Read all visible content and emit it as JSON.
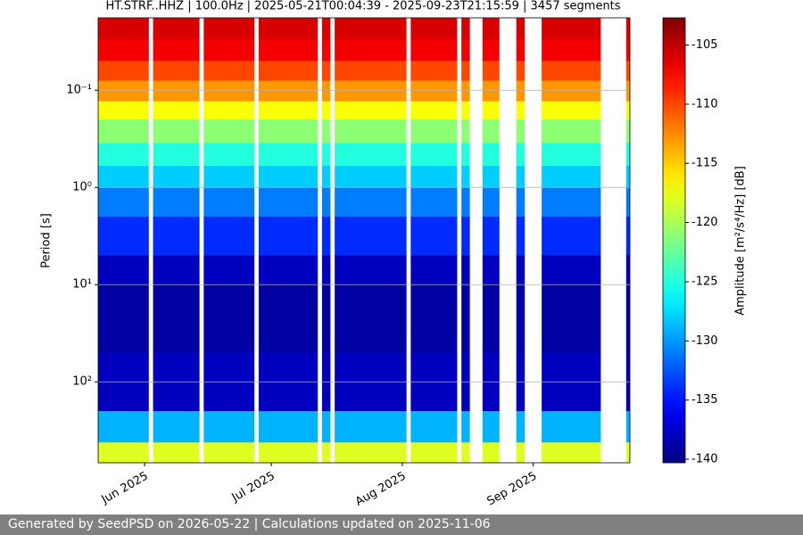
{
  "chart_data": {
    "type": "spectrogram",
    "title": "HT.STRF..HHZ | 100.0Hz | 2025-05-21T00:04:39 - 2025-09-23T21:15:59 | 3457 segments",
    "y_label": "Period [s]",
    "colorbar_label": "Amplitude [m²/s⁴/Hz] [dB]",
    "xlim": [
      "2025-05-21T00:04:39",
      "2025-09-23T21:15:59"
    ],
    "xticks": [
      {
        "value": "2025-06-01",
        "label": "Jun 2025"
      },
      {
        "value": "2025-07-01",
        "label": "Jul 2025"
      },
      {
        "value": "2025-08-01",
        "label": "Aug 2025"
      },
      {
        "value": "2025-09-01",
        "label": "Sep 2025"
      }
    ],
    "ylim": [
      0.018,
      680
    ],
    "y_log": true,
    "y_inverted": true,
    "yticks": [
      {
        "value": 0.1,
        "label": "10⁻¹"
      },
      {
        "value": 1,
        "label": "10⁰"
      },
      {
        "value": 10,
        "label": "10¹"
      },
      {
        "value": 100,
        "label": "10²"
      }
    ],
    "grid": true,
    "colormap": "jet",
    "clim": [
      -140.3,
      -102.7
    ],
    "cticks": [
      -105,
      -110,
      -115,
      -120,
      -125,
      -130,
      -135,
      -140
    ],
    "period_bins": [
      0.018,
      0.03,
      0.05,
      0.08,
      0.13,
      0.2,
      0.35,
      0.6,
      1,
      2,
      5,
      10,
      50,
      200,
      420,
      680
    ],
    "values": [
      -106,
      -107,
      -110,
      -113,
      -117,
      -121,
      -125,
      -128,
      -131,
      -134,
      -138,
      -139,
      -138,
      -129,
      -118
    ],
    "segments": [
      [
        "2025-05-21",
        "2025-06-02"
      ],
      [
        "2025-06-03",
        "2025-06-14"
      ],
      [
        "2025-06-15",
        "2025-06-27"
      ],
      [
        "2025-06-28",
        "2025-07-12"
      ],
      [
        "2025-07-13",
        "2025-07-15"
      ],
      [
        "2025-07-16",
        "2025-08-02"
      ],
      [
        "2025-08-03",
        "2025-08-14"
      ],
      [
        "2025-08-15",
        "2025-08-17"
      ],
      [
        "2025-08-20",
        "2025-08-24"
      ],
      [
        "2025-08-28",
        "2025-08-30"
      ],
      [
        "2025-09-03",
        "2025-09-17"
      ],
      [
        "2025-09-23",
        "2025-09-23T21:15:59"
      ]
    ]
  },
  "footer": "Generated by SeedPSD on 2026-05-22 | Calculations updated on 2025-11-06"
}
